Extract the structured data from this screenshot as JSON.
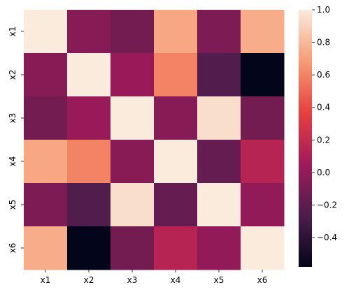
{
  "chart_data": {
    "type": "heatmap",
    "title": "",
    "xlabel": "",
    "ylabel": "",
    "x_categories": [
      "x1",
      "x2",
      "x3",
      "x4",
      "x5",
      "x6"
    ],
    "y_categories": [
      "x1",
      "x2",
      "x3",
      "x4",
      "x5",
      "x6"
    ],
    "values": [
      [
        1.0,
        -0.05,
        -0.12,
        0.73,
        -0.08,
        0.75
      ],
      [
        -0.05,
        1.0,
        0.02,
        0.6,
        -0.25,
        -0.58
      ],
      [
        -0.12,
        0.02,
        1.0,
        -0.05,
        0.95,
        -0.12
      ],
      [
        0.73,
        0.6,
        -0.05,
        1.0,
        -0.17,
        0.14
      ],
      [
        -0.08,
        -0.25,
        0.95,
        -0.17,
        1.0,
        0.0
      ],
      [
        0.75,
        -0.58,
        -0.12,
        0.14,
        0.0,
        1.0
      ]
    ],
    "colorbar": {
      "range": [
        -0.58,
        1.0
      ],
      "ticks": [
        -0.4,
        -0.2,
        0.0,
        0.2,
        0.4,
        0.6,
        0.8,
        1.0
      ],
      "tick_labels": [
        "−0.4",
        "−0.2",
        "0.0",
        "0.2",
        "0.4",
        "0.6",
        "0.8",
        "1.0"
      ],
      "colormap": "rocket",
      "colormap_stops": [
        "#03051a",
        "#4c1d4b",
        "#a11a5b",
        "#e83f3f",
        "#f69c73",
        "#faebdd"
      ]
    },
    "grid": false
  }
}
